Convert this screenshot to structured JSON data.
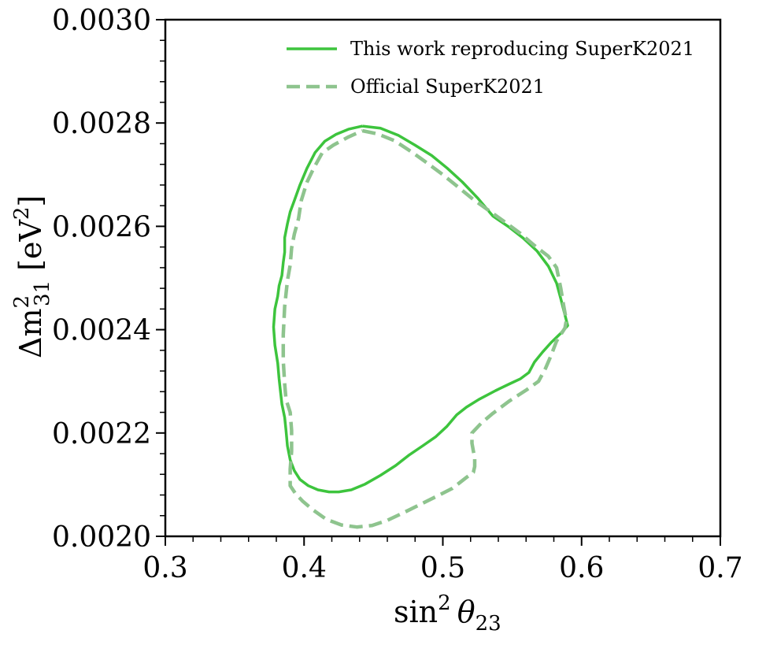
{
  "chart_data": {
    "type": "line",
    "title": "",
    "xlabel_base": "sin",
    "xlabel_sup": "2",
    "xlabel_sym": "θ",
    "xlabel_sub": "23",
    "xlabel": "sin² θ23",
    "ylabel_main": "Δm",
    "ylabel_sup": "2",
    "ylabel_sub": "31",
    "ylabel_unit": "[eV",
    "ylabel_unit_sup": "2",
    "ylabel_unit_close": "]",
    "ylabel": "Δm²31 [eV²]",
    "xlim": [
      0.3,
      0.7
    ],
    "ylim": [
      0.002,
      0.003
    ],
    "x_ticks": [
      0.3,
      0.4,
      0.5,
      0.6,
      0.7
    ],
    "x_tick_labels": [
      "0.3",
      "0.4",
      "0.5",
      "0.6",
      "0.7"
    ],
    "y_ticks": [
      0.002,
      0.0022,
      0.0024,
      0.0026,
      0.0028,
      0.003
    ],
    "y_tick_labels": [
      "0.0020",
      "0.0022",
      "0.0024",
      "0.0026",
      "0.0028",
      "0.0030"
    ],
    "grid": false,
    "legend_position": "top-right",
    "series": [
      {
        "name": "This work reproducing SuperK2021",
        "style": "solid",
        "color": "#3dc43d",
        "points": [
          [
            0.442,
            0.002794
          ],
          [
            0.455,
            0.00279
          ],
          [
            0.468,
            0.002776
          ],
          [
            0.48,
            0.002757
          ],
          [
            0.492,
            0.002737
          ],
          [
            0.503,
            0.002713
          ],
          [
            0.514,
            0.002686
          ],
          [
            0.525,
            0.002655
          ],
          [
            0.536,
            0.00262
          ],
          [
            0.548,
            0.002598
          ],
          [
            0.558,
            0.002577
          ],
          [
            0.568,
            0.002552
          ],
          [
            0.576,
            0.002523
          ],
          [
            0.582,
            0.00249
          ],
          [
            0.585,
            0.00246
          ],
          [
            0.59,
            0.002408
          ],
          [
            0.585,
            0.002393
          ],
          [
            0.578,
            0.002375
          ],
          [
            0.572,
            0.002357
          ],
          [
            0.566,
            0.002337
          ],
          [
            0.562,
            0.002317
          ],
          [
            0.556,
            0.002305
          ],
          [
            0.548,
            0.002295
          ],
          [
            0.538,
            0.002282
          ],
          [
            0.526,
            0.002265
          ],
          [
            0.517,
            0.00225
          ],
          [
            0.51,
            0.002235
          ],
          [
            0.503,
            0.002213
          ],
          [
            0.495,
            0.002193
          ],
          [
            0.486,
            0.002176
          ],
          [
            0.476,
            0.002158
          ],
          [
            0.466,
            0.002137
          ],
          [
            0.455,
            0.002118
          ],
          [
            0.444,
            0.002101
          ],
          [
            0.434,
            0.00209
          ],
          [
            0.425,
            0.002086
          ],
          [
            0.418,
            0.002086
          ],
          [
            0.41,
            0.00209
          ],
          [
            0.403,
            0.002098
          ],
          [
            0.397,
            0.00211
          ],
          [
            0.393,
            0.002127
          ],
          [
            0.39,
            0.002148
          ],
          [
            0.388,
            0.002175
          ],
          [
            0.387,
            0.002205
          ],
          [
            0.386,
            0.00223
          ],
          [
            0.384,
            0.002256
          ],
          [
            0.383,
            0.00228
          ],
          [
            0.382,
            0.002305
          ],
          [
            0.381,
            0.002335
          ],
          [
            0.379,
            0.00237
          ],
          [
            0.378,
            0.002405
          ],
          [
            0.379,
            0.00244
          ],
          [
            0.381,
            0.002465
          ],
          [
            0.382,
            0.002485
          ],
          [
            0.384,
            0.002505
          ],
          [
            0.385,
            0.00253
          ],
          [
            0.386,
            0.00255
          ],
          [
            0.386,
            0.002578
          ],
          [
            0.388,
            0.002605
          ],
          [
            0.39,
            0.002628
          ],
          [
            0.393,
            0.00265
          ],
          [
            0.397,
            0.00268
          ],
          [
            0.402,
            0.002712
          ],
          [
            0.408,
            0.002743
          ],
          [
            0.415,
            0.002765
          ],
          [
            0.423,
            0.002778
          ],
          [
            0.432,
            0.002788
          ],
          [
            0.442,
            0.002794
          ]
        ]
      },
      {
        "name": "Official SuperK2021",
        "style": "dashed",
        "color": "#8ec48e",
        "points": [
          [
            0.442,
            0.002785
          ],
          [
            0.453,
            0.002779
          ],
          [
            0.465,
            0.002766
          ],
          [
            0.477,
            0.002745
          ],
          [
            0.489,
            0.002722
          ],
          [
            0.5,
            0.0027
          ],
          [
            0.511,
            0.002676
          ],
          [
            0.522,
            0.002652
          ],
          [
            0.534,
            0.002629
          ],
          [
            0.546,
            0.002606
          ],
          [
            0.556,
            0.002586
          ],
          [
            0.566,
            0.002563
          ],
          [
            0.576,
            0.002542
          ],
          [
            0.582,
            0.00252
          ],
          [
            0.585,
            0.00248
          ],
          [
            0.587,
            0.002448
          ],
          [
            0.589,
            0.002418
          ],
          [
            0.588,
            0.002403
          ],
          [
            0.582,
            0.002378
          ],
          [
            0.578,
            0.00235
          ],
          [
            0.574,
            0.002325
          ],
          [
            0.569,
            0.0023
          ],
          [
            0.56,
            0.002283
          ],
          [
            0.548,
            0.002262
          ],
          [
            0.536,
            0.002238
          ],
          [
            0.528,
            0.00222
          ],
          [
            0.521,
            0.0022
          ],
          [
            0.521,
            0.00218
          ],
          [
            0.522,
            0.002165
          ],
          [
            0.523,
            0.002152
          ],
          [
            0.523,
            0.002135
          ],
          [
            0.522,
            0.002124
          ],
          [
            0.517,
            0.002114
          ],
          [
            0.507,
            0.002093
          ],
          [
            0.496,
            0.002078
          ],
          [
            0.484,
            0.002062
          ],
          [
            0.472,
            0.002046
          ],
          [
            0.46,
            0.002031
          ],
          [
            0.449,
            0.002021
          ],
          [
            0.438,
            0.002018
          ],
          [
            0.427,
            0.002022
          ],
          [
            0.416,
            0.002033
          ],
          [
            0.406,
            0.002052
          ],
          [
            0.399,
            0.002068
          ],
          [
            0.394,
            0.002082
          ],
          [
            0.39,
            0.002098
          ],
          [
            0.39,
            0.00213
          ],
          [
            0.391,
            0.002165
          ],
          [
            0.391,
            0.00218
          ],
          [
            0.391,
            0.002205
          ],
          [
            0.39,
            0.00224
          ],
          [
            0.387,
            0.002265
          ],
          [
            0.386,
            0.002295
          ],
          [
            0.385,
            0.00234
          ],
          [
            0.385,
            0.00239
          ],
          [
            0.386,
            0.002445
          ],
          [
            0.388,
            0.002495
          ],
          [
            0.39,
            0.002525
          ],
          [
            0.391,
            0.002558
          ],
          [
            0.393,
            0.002585
          ],
          [
            0.396,
            0.002615
          ],
          [
            0.398,
            0.00265
          ],
          [
            0.402,
            0.002685
          ],
          [
            0.407,
            0.002713
          ],
          [
            0.413,
            0.002742
          ],
          [
            0.421,
            0.002757
          ],
          [
            0.432,
            0.002773
          ],
          [
            0.442,
            0.002785
          ]
        ]
      }
    ]
  }
}
